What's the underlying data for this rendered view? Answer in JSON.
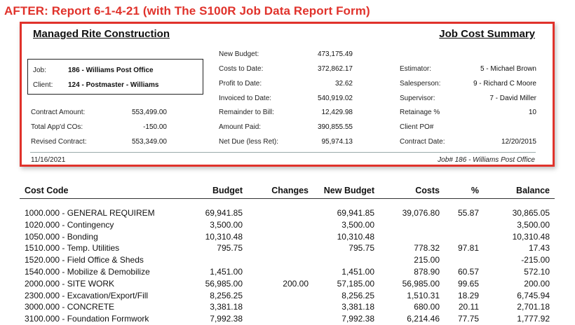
{
  "banner": "AFTER: Report 6-1-4-21 (with The S100R Job Data Report Form)",
  "header": {
    "company": "Managed Rite Construction",
    "report_title": "Job Cost Summary"
  },
  "job_box": {
    "job_label": "Job:",
    "job_value": "186 - Williams Post Office",
    "client_label": "Client:",
    "client_value": "124 - Postmaster - Williams"
  },
  "contract": {
    "contract_amount_label": "Contract Amount:",
    "contract_amount": "553,499.00",
    "total_cos_label": "Total App'd COs:",
    "total_cos": "-150.00",
    "revised_label": "Revised Contract:",
    "revised": "553,349.00"
  },
  "budget": {
    "new_budget_label": "New Budget:",
    "new_budget": "473,175.49",
    "costs_label": "Costs to Date:",
    "costs": "372,862.17",
    "profit_label": "Profit to Date:",
    "profit": "32.62",
    "invoiced_label": "Invoiced to Date:",
    "invoiced": "540,919.02",
    "remainder_label": "Remainder to Bill:",
    "remainder": "12,429.98",
    "paid_label": "Amount Paid:",
    "paid": "390,855.55",
    "netdue_label": "Net Due (less Ret):",
    "netdue": "95,974.13"
  },
  "people": {
    "estimator_label": "Estimator:",
    "estimator": "5 - Michael Brown",
    "salesperson_label": "Salesperson:",
    "salesperson": "9 - Richard C Moore",
    "supervisor_label": "Supervisor:",
    "supervisor": "7 - David Miller",
    "retainage_label": "Retainage %",
    "retainage": "10",
    "client_po_label": "Client PO#",
    "contract_date_label": "Contract Date:",
    "contract_date": "12/20/2015"
  },
  "footer": {
    "date": "11/16/2021",
    "job_ref": "Job# 186 - Williams Post Office"
  },
  "table": {
    "headers": [
      "Cost Code",
      "Budget",
      "Changes",
      "New Budget",
      "Costs",
      "%",
      "Balance"
    ],
    "rows": [
      [
        "1000.000 - GENERAL REQUIREM",
        "69,941.85",
        "",
        "69,941.85",
        "39,076.80",
        "55.87",
        "30,865.05"
      ],
      [
        "1020.000 - Contingency",
        "3,500.00",
        "",
        "3,500.00",
        "",
        "",
        "3,500.00"
      ],
      [
        "1050.000 - Bonding",
        "10,310.48",
        "",
        "10,310.48",
        "",
        "",
        "10,310.48"
      ],
      [
        "1510.000 - Temp. Utilities",
        "795.75",
        "",
        "795.75",
        "778.32",
        "97.81",
        "17.43"
      ],
      [
        "1520.000 - Field Office & Sheds",
        "",
        "",
        "",
        "215.00",
        "",
        "-215.00"
      ],
      [
        "1540.000 - Mobilize & Demobilize",
        "1,451.00",
        "",
        "1,451.00",
        "878.90",
        "60.57",
        "572.10"
      ],
      [
        "2000.000 - SITE WORK",
        "56,985.00",
        "200.00",
        "57,185.00",
        "56,985.00",
        "99.65",
        "200.00"
      ],
      [
        "2300.000 - Excavation/Export/Fill",
        "8,256.25",
        "",
        "8,256.25",
        "1,510.31",
        "18.29",
        "6,745.94"
      ],
      [
        "3000.000 - CONCRETE",
        "3,381.18",
        "",
        "3,381.18",
        "680.00",
        "20.11",
        "2,701.18"
      ],
      [
        "3100.000 - Foundation Formwork",
        "7,992.38",
        "",
        "7,992.38",
        "6,214.46",
        "77.75",
        "1,777.92"
      ]
    ]
  }
}
